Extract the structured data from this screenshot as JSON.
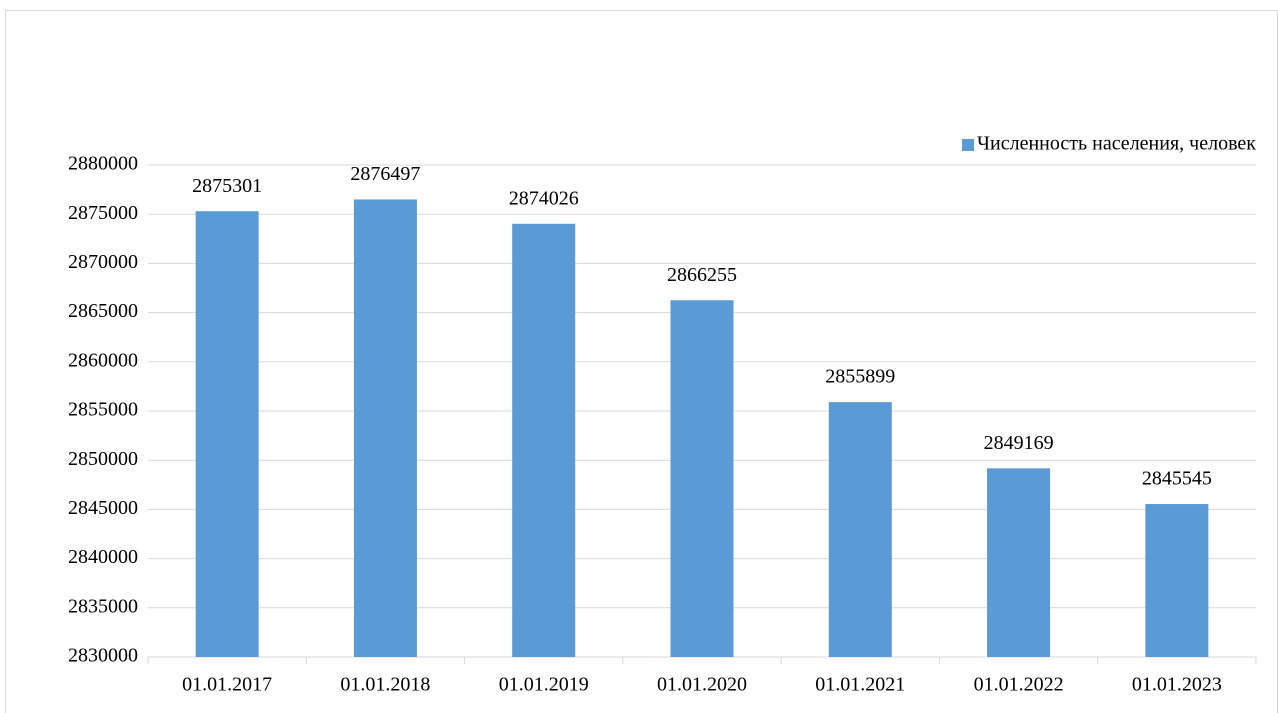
{
  "chart_data": {
    "type": "bar",
    "categories": [
      "01.01.2017",
      "01.01.2018",
      "01.01.2019",
      "01.01.2020",
      "01.01.2021",
      "01.01.2022",
      "01.01.2023"
    ],
    "series": [
      {
        "name": "Численность населения, человек",
        "color": "#5b9bd5",
        "values": [
          2875301,
          2876497,
          2874026,
          2866255,
          2855899,
          2849169,
          2845545
        ]
      }
    ],
    "ylim": [
      2830000,
      2880000
    ],
    "yticks": [
      2830000,
      2835000,
      2840000,
      2845000,
      2850000,
      2855000,
      2860000,
      2865000,
      2870000,
      2875000,
      2880000
    ],
    "grid": true,
    "legend": "top-right",
    "data_labels": true
  }
}
